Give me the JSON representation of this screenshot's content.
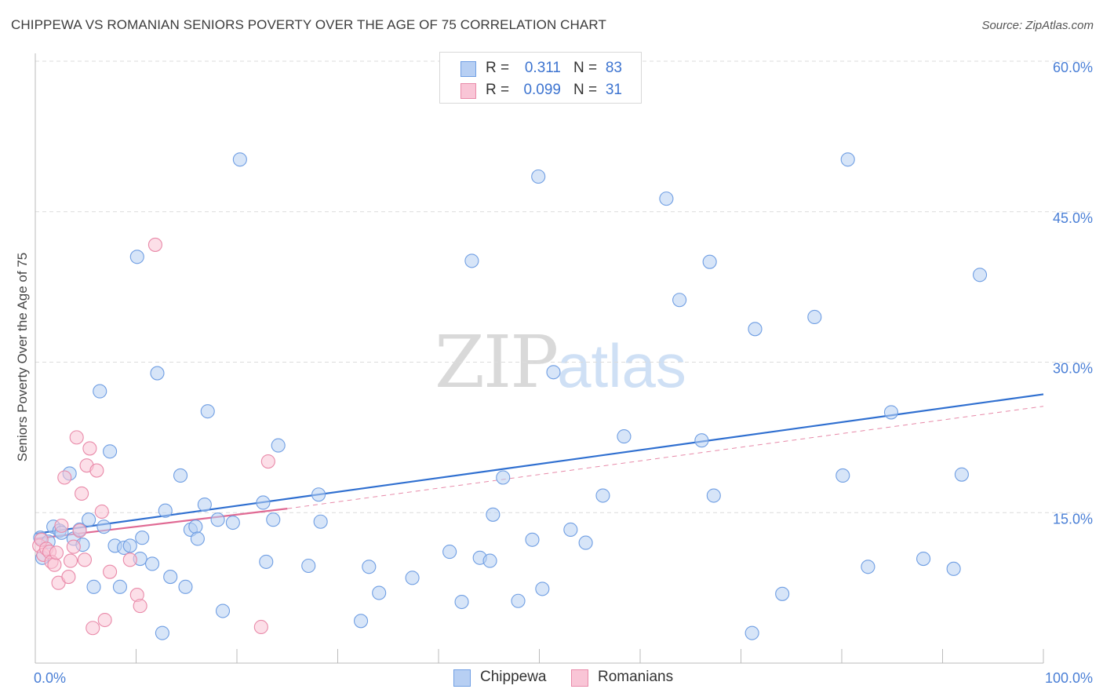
{
  "title": "CHIPPEWA VS ROMANIAN SENIORS POVERTY OVER THE AGE OF 75 CORRELATION CHART",
  "source": "Source: ZipAtlas.com",
  "watermark": {
    "zip": "ZIP",
    "atlas": "atlas"
  },
  "legend": {
    "rows": [
      {
        "r_label": "R =",
        "r_value": "0.311",
        "n_label": "N =",
        "n_value": "83",
        "fill": "#b7cff3",
        "stroke": "#6f9ee3"
      },
      {
        "r_label": "R =",
        "r_value": "0.099",
        "n_label": "N =",
        "n_value": "31",
        "fill": "#f9c5d6",
        "stroke": "#e98aa9"
      }
    ]
  },
  "bottom_legend": [
    {
      "label": "Chippewa",
      "fill": "#b7cff3",
      "stroke": "#6f9ee3"
    },
    {
      "label": "Romanians",
      "fill": "#f9c5d6",
      "stroke": "#e98aa9"
    }
  ],
  "chart_data": {
    "type": "scatter",
    "title": "CHIPPEWA VS ROMANIAN SENIORS POVERTY OVER THE AGE OF 75 CORRELATION CHART",
    "xlabel": "",
    "ylabel": "Seniors Poverty Over the Age of 75",
    "xlim": [
      0,
      100
    ],
    "ylim": [
      0,
      60
    ],
    "x_tick_labels": [
      {
        "value": 0,
        "label": "0.0%"
      },
      {
        "value": 100,
        "label": "100.0%"
      }
    ],
    "y_tick_labels": [
      {
        "value": 15,
        "label": "15.0%"
      },
      {
        "value": 30,
        "label": "30.0%"
      },
      {
        "value": 45,
        "label": "45.0%"
      },
      {
        "value": 60,
        "label": "60.0%"
      }
    ],
    "grid": true,
    "legend_position": "top-center",
    "series": [
      {
        "name": "Chippewa",
        "color": "#6f9ee3",
        "fill": "#b7cff3",
        "trend": {
          "x": [
            0,
            100
          ],
          "y": [
            12.9,
            26.8
          ],
          "style": "solid",
          "color": "#2f6fd0"
        },
        "points": [
          [
            0.5,
            12.5
          ],
          [
            0.7,
            10.5
          ],
          [
            1.3,
            12.1
          ],
          [
            1.8,
            13.6
          ],
          [
            2.4,
            13.2
          ],
          [
            2.6,
            13.0
          ],
          [
            3.4,
            18.9
          ],
          [
            3.8,
            12.4
          ],
          [
            4.4,
            13.3
          ],
          [
            4.7,
            11.8
          ],
          [
            5.3,
            14.3
          ],
          [
            5.8,
            7.6
          ],
          [
            6.4,
            27.1
          ],
          [
            6.8,
            13.6
          ],
          [
            7.4,
            21.1
          ],
          [
            7.9,
            11.7
          ],
          [
            8.4,
            7.6
          ],
          [
            8.8,
            11.5
          ],
          [
            9.4,
            11.7
          ],
          [
            10.1,
            40.5
          ],
          [
            10.4,
            10.4
          ],
          [
            10.6,
            12.5
          ],
          [
            11.6,
            9.9
          ],
          [
            12.1,
            28.9
          ],
          [
            12.6,
            3.0
          ],
          [
            12.9,
            15.2
          ],
          [
            13.4,
            8.6
          ],
          [
            14.4,
            18.7
          ],
          [
            14.9,
            7.6
          ],
          [
            15.4,
            13.3
          ],
          [
            15.9,
            13.6
          ],
          [
            16.1,
            12.4
          ],
          [
            16.8,
            15.8
          ],
          [
            17.1,
            25.1
          ],
          [
            18.1,
            14.3
          ],
          [
            18.6,
            5.2
          ],
          [
            19.6,
            14.0
          ],
          [
            20.3,
            50.2
          ],
          [
            22.6,
            16.0
          ],
          [
            22.9,
            10.1
          ],
          [
            23.6,
            14.3
          ],
          [
            24.1,
            21.7
          ],
          [
            27.1,
            9.7
          ],
          [
            28.1,
            16.8
          ],
          [
            28.3,
            14.1
          ],
          [
            32.3,
            4.2
          ],
          [
            33.1,
            9.6
          ],
          [
            34.1,
            7.0
          ],
          [
            37.4,
            8.5
          ],
          [
            41.1,
            11.1
          ],
          [
            42.3,
            6.1
          ],
          [
            43.3,
            40.1
          ],
          [
            44.1,
            10.5
          ],
          [
            45.4,
            14.8
          ],
          [
            45.1,
            10.2
          ],
          [
            46.4,
            18.5
          ],
          [
            47.9,
            6.2
          ],
          [
            49.3,
            12.3
          ],
          [
            49.9,
            48.5
          ],
          [
            50.3,
            7.4
          ],
          [
            51.4,
            29.0
          ],
          [
            53.1,
            13.3
          ],
          [
            54.6,
            12.0
          ],
          [
            56.3,
            16.7
          ],
          [
            58.4,
            22.6
          ],
          [
            62.6,
            46.3
          ],
          [
            63.9,
            36.2
          ],
          [
            66.1,
            22.2
          ],
          [
            66.9,
            40.0
          ],
          [
            67.3,
            16.7
          ],
          [
            71.1,
            3.0
          ],
          [
            71.4,
            33.3
          ],
          [
            74.1,
            6.9
          ],
          [
            77.3,
            34.5
          ],
          [
            80.1,
            18.7
          ],
          [
            80.6,
            50.2
          ],
          [
            82.6,
            9.6
          ],
          [
            84.9,
            25.0
          ],
          [
            88.1,
            10.4
          ],
          [
            91.1,
            9.4
          ],
          [
            91.9,
            18.8
          ],
          [
            93.7,
            38.7
          ],
          [
            59.2,
            60.0
          ]
        ]
      },
      {
        "name": "Romanians",
        "color": "#e98aa9",
        "fill": "#f9c5d6",
        "trend": {
          "x": [
            0,
            25
          ],
          "y": [
            12.4,
            15.4
          ],
          "style": "solid",
          "color": "#e06a94"
        },
        "trend_ext": {
          "x": [
            25,
            100
          ],
          "y": [
            15.4,
            25.6
          ],
          "style": "dashed",
          "color": "#e78aa9"
        },
        "points": [
          [
            0.4,
            11.7
          ],
          [
            0.6,
            12.3
          ],
          [
            0.8,
            10.8
          ],
          [
            1.1,
            11.4
          ],
          [
            1.4,
            11.1
          ],
          [
            1.6,
            10.1
          ],
          [
            1.9,
            9.8
          ],
          [
            2.1,
            11.0
          ],
          [
            2.3,
            8.0
          ],
          [
            2.6,
            13.7
          ],
          [
            2.9,
            18.5
          ],
          [
            3.3,
            8.6
          ],
          [
            3.5,
            10.2
          ],
          [
            3.8,
            11.6
          ],
          [
            4.1,
            22.5
          ],
          [
            4.4,
            13.2
          ],
          [
            4.6,
            16.9
          ],
          [
            4.9,
            10.3
          ],
          [
            5.1,
            19.7
          ],
          [
            5.4,
            21.4
          ],
          [
            5.7,
            3.5
          ],
          [
            6.1,
            19.2
          ],
          [
            6.6,
            15.1
          ],
          [
            6.9,
            4.3
          ],
          [
            7.4,
            9.1
          ],
          [
            9.4,
            10.3
          ],
          [
            10.1,
            6.8
          ],
          [
            10.4,
            5.7
          ],
          [
            11.9,
            41.7
          ],
          [
            22.4,
            3.6
          ],
          [
            23.1,
            20.1
          ]
        ]
      }
    ]
  }
}
